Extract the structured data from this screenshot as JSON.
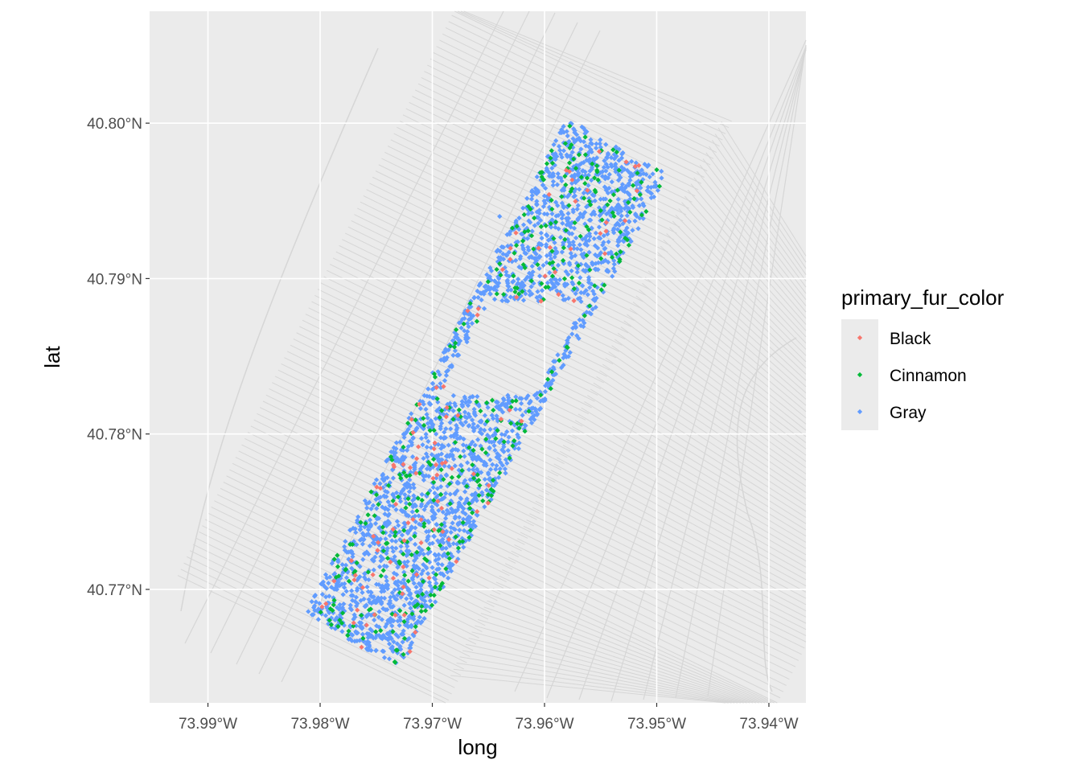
{
  "chart_data": {
    "type": "scatter",
    "title": "",
    "xlabel": "long",
    "ylabel": "lat",
    "xlim": [
      -73.9952,
      -73.9367
    ],
    "ylim": [
      40.7627,
      40.8072
    ],
    "x_ticks": [
      {
        "value": -73.99,
        "label": "73.99°W"
      },
      {
        "value": -73.98,
        "label": "73.98°W"
      },
      {
        "value": -73.97,
        "label": "73.97°W"
      },
      {
        "value": -73.96,
        "label": "73.96°W"
      },
      {
        "value": -73.95,
        "label": "73.95°W"
      },
      {
        "value": -73.94,
        "label": "73.94°W"
      }
    ],
    "y_ticks": [
      {
        "value": 40.77,
        "label": "40.77°N"
      },
      {
        "value": 40.78,
        "label": "40.78°N"
      },
      {
        "value": 40.79,
        "label": "40.79°N"
      },
      {
        "value": 40.8,
        "label": "40.80°N"
      }
    ],
    "grid": true,
    "background": "#ebebeb",
    "legend": {
      "title": "primary_fur_color",
      "placement": "right",
      "entries": [
        {
          "name": "Black",
          "color": "#F8766D"
        },
        {
          "name": "Cinnamon",
          "color": "#00BA38"
        },
        {
          "name": "Gray",
          "color": "#619CFF"
        }
      ]
    },
    "park_extent": {
      "corners": [
        [
          -73.9813,
          40.7685
        ],
        [
          -73.958,
          40.8003
        ],
        [
          -73.949,
          40.7967
        ],
        [
          -73.973,
          40.7648
        ]
      ],
      "reservoir_gap_lat": [
        40.7825,
        40.7885
      ]
    },
    "series": [
      {
        "name": "Gray",
        "color": "#619CFF",
        "count": 2400,
        "sample_points": [
          [
            -73.9705,
            40.776
          ],
          [
            -73.9595,
            40.7915
          ],
          [
            -73.9785,
            40.77
          ],
          [
            -73.964,
            40.794
          ]
        ]
      },
      {
        "name": "Cinnamon",
        "color": "#00BA38",
        "count": 360,
        "sample_points": [
          [
            -73.964,
            40.7775
          ],
          [
            -73.95,
            40.797
          ],
          [
            -73.9788,
            40.769
          ],
          [
            -73.9735,
            40.7757
          ]
        ]
      },
      {
        "name": "Black",
        "color": "#F8766D",
        "count": 100,
        "sample_points": [
          [
            -73.9595,
            40.792
          ],
          [
            -73.972,
            40.766
          ],
          [
            -73.9625,
            40.7888
          ],
          [
            -73.971,
            40.773
          ]
        ]
      }
    ]
  }
}
